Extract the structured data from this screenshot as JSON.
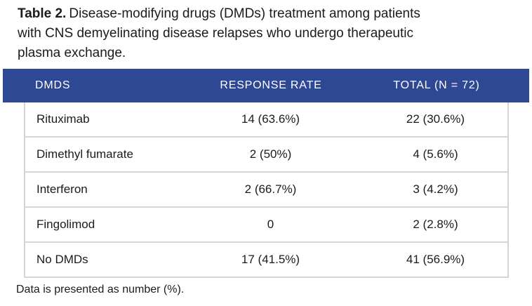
{
  "colors": {
    "header_bg": "#2F4894",
    "header_text": "#FFFFFF",
    "body_border": "#D5D5D5",
    "text": "#1B1B1B",
    "background": "#FFFFFF"
  },
  "caption": {
    "label": "Table 2.",
    "line1": "Disease-modifying drugs (DMDs) treatment among patients",
    "line2": "with CNS demyelinating disease relapses who undergo therapeutic",
    "line3": "plasma exchange."
  },
  "table": {
    "columns": [
      "DMDS",
      "RESPONSE RATE",
      "TOTAL (N = 72)"
    ],
    "rows": [
      [
        "Rituximab",
        "14 (63.6%)",
        "22 (30.6%)"
      ],
      [
        "Dimethyl fumarate",
        "2 (50%)",
        "4 (5.6%)"
      ],
      [
        "Interferon",
        "2 (66.7%)",
        "3 (4.2%)"
      ],
      [
        "Fingolimod",
        "0",
        "2 (2.8%)"
      ],
      [
        "No DMDs",
        "17 (41.5%)",
        "41 (56.9%)"
      ]
    ]
  },
  "footnote": "Data is presented as number (%).",
  "chart_data": {
    "type": "table",
    "title": "Table 2. Disease-modifying drugs (DMDs) treatment among patients with CNS demyelinating disease relapses who undergo therapeutic plasma exchange.",
    "columns": [
      "DMDS",
      "RESPONSE RATE",
      "TOTAL (N = 72)"
    ],
    "rows": [
      [
        "Rituximab",
        "14 (63.6%)",
        "22 (30.6%)"
      ],
      [
        "Dimethyl fumarate",
        "2 (50%)",
        "4 (5.6%)"
      ],
      [
        "Interferon",
        "2 (66.7%)",
        "3 (4.2%)"
      ],
      [
        "Fingolimod",
        "0",
        "2 (2.8%)"
      ],
      [
        "No DMDs",
        "17 (41.5%)",
        "41 (56.9%)"
      ]
    ],
    "footnote": "Data is presented as number (%)."
  }
}
